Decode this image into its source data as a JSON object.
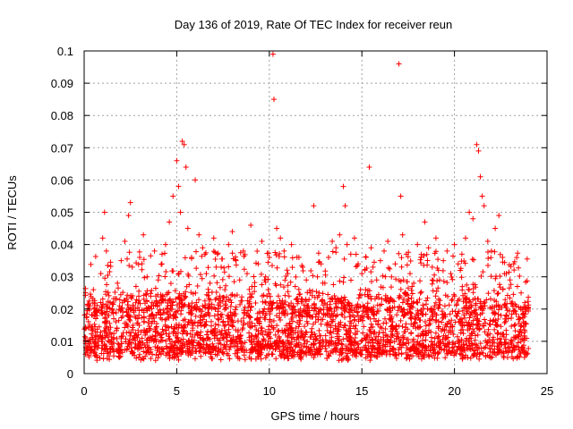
{
  "chart_data": {
    "type": "scatter",
    "title": "Day 136 of 2019, Rate Of TEC Index for receiver reun",
    "xlabel": "GPS time / hours",
    "ylabel": "ROTI / TECUs",
    "xlim": [
      0,
      25
    ],
    "ylim": [
      0,
      0.1
    ],
    "xticks": [
      0,
      5,
      10,
      15,
      20,
      25
    ],
    "xtick_labels": [
      "0",
      "5",
      "10",
      "15",
      "20",
      "25"
    ],
    "yticks": [
      0,
      0.01,
      0.02,
      0.03,
      0.04,
      0.05,
      0.06,
      0.07,
      0.08,
      0.09,
      0.1
    ],
    "ytick_labels": [
      "0",
      "0.01",
      "0.02",
      "0.03",
      "0.04",
      "0.05",
      "0.06",
      "0.07",
      "0.08",
      "0.09",
      "0.1"
    ],
    "grid": true,
    "marker": "+",
    "color": "#ff0000",
    "series": [
      {
        "name": "ROTI",
        "x": [
          0.1,
          0.3,
          0.5,
          0.7,
          0.9,
          1.0,
          1.1,
          1.2,
          1.4,
          1.6,
          1.8,
          2.0,
          2.2,
          2.4,
          2.5,
          2.6,
          2.8,
          3.0,
          3.2,
          3.4,
          3.6,
          3.8,
          4.0,
          4.2,
          4.4,
          4.6,
          4.8,
          5.0,
          5.1,
          5.2,
          5.3,
          5.4,
          5.5,
          5.6,
          5.8,
          6.0,
          6.2,
          6.4,
          6.6,
          6.8,
          7.0,
          7.2,
          7.4,
          7.6,
          7.8,
          8.0,
          8.2,
          8.4,
          8.6,
          8.8,
          9.0,
          9.2,
          9.4,
          9.6,
          9.8,
          10.0,
          10.2,
          10.25,
          10.4,
          10.6,
          10.8,
          11.0,
          11.2,
          11.4,
          11.6,
          11.8,
          12.0,
          12.2,
          12.4,
          12.6,
          12.8,
          13.0,
          13.2,
          13.4,
          13.6,
          13.8,
          14.0,
          14.1,
          14.2,
          14.4,
          14.6,
          14.8,
          15.0,
          15.2,
          15.4,
          15.5,
          15.6,
          15.8,
          16.0,
          16.2,
          16.4,
          16.6,
          16.8,
          17.0,
          17.1,
          17.2,
          17.4,
          17.6,
          17.8,
          18.0,
          18.2,
          18.4,
          18.6,
          18.8,
          19.0,
          19.2,
          19.4,
          19.6,
          19.8,
          20.0,
          20.2,
          20.4,
          20.6,
          20.8,
          21.0,
          21.2,
          21.3,
          21.4,
          21.5,
          21.6,
          21.8,
          22.0,
          22.2,
          22.4,
          22.6,
          22.8,
          23.0,
          23.2,
          23.4,
          23.6,
          23.8
        ],
        "y": [
          0.014,
          0.021,
          0.026,
          0.018,
          0.031,
          0.042,
          0.05,
          0.038,
          0.022,
          0.017,
          0.028,
          0.035,
          0.041,
          0.049,
          0.053,
          0.033,
          0.027,
          0.036,
          0.043,
          0.03,
          0.024,
          0.038,
          0.029,
          0.034,
          0.04,
          0.047,
          0.055,
          0.066,
          0.058,
          0.05,
          0.072,
          0.071,
          0.064,
          0.045,
          0.036,
          0.06,
          0.043,
          0.039,
          0.031,
          0.028,
          0.042,
          0.037,
          0.033,
          0.026,
          0.04,
          0.044,
          0.035,
          0.029,
          0.038,
          0.031,
          0.046,
          0.027,
          0.034,
          0.041,
          0.03,
          0.036,
          0.099,
          0.085,
          0.045,
          0.042,
          0.038,
          0.031,
          0.04,
          0.027,
          0.036,
          0.033,
          0.029,
          0.025,
          0.052,
          0.03,
          0.034,
          0.028,
          0.036,
          0.041,
          0.039,
          0.043,
          0.058,
          0.052,
          0.04,
          0.037,
          0.042,
          0.034,
          0.031,
          0.026,
          0.064,
          0.039,
          0.033,
          0.029,
          0.035,
          0.038,
          0.041,
          0.03,
          0.034,
          0.096,
          0.055,
          0.043,
          0.037,
          0.031,
          0.028,
          0.04,
          0.036,
          0.047,
          0.039,
          0.033,
          0.042,
          0.029,
          0.035,
          0.038,
          0.031,
          0.04,
          0.034,
          0.037,
          0.042,
          0.05,
          0.048,
          0.071,
          0.069,
          0.061,
          0.055,
          0.052,
          0.041,
          0.038,
          0.045,
          0.049,
          0.036,
          0.031,
          0.029,
          0.034,
          0.027,
          0.025,
          0.022
        ]
      }
    ]
  }
}
